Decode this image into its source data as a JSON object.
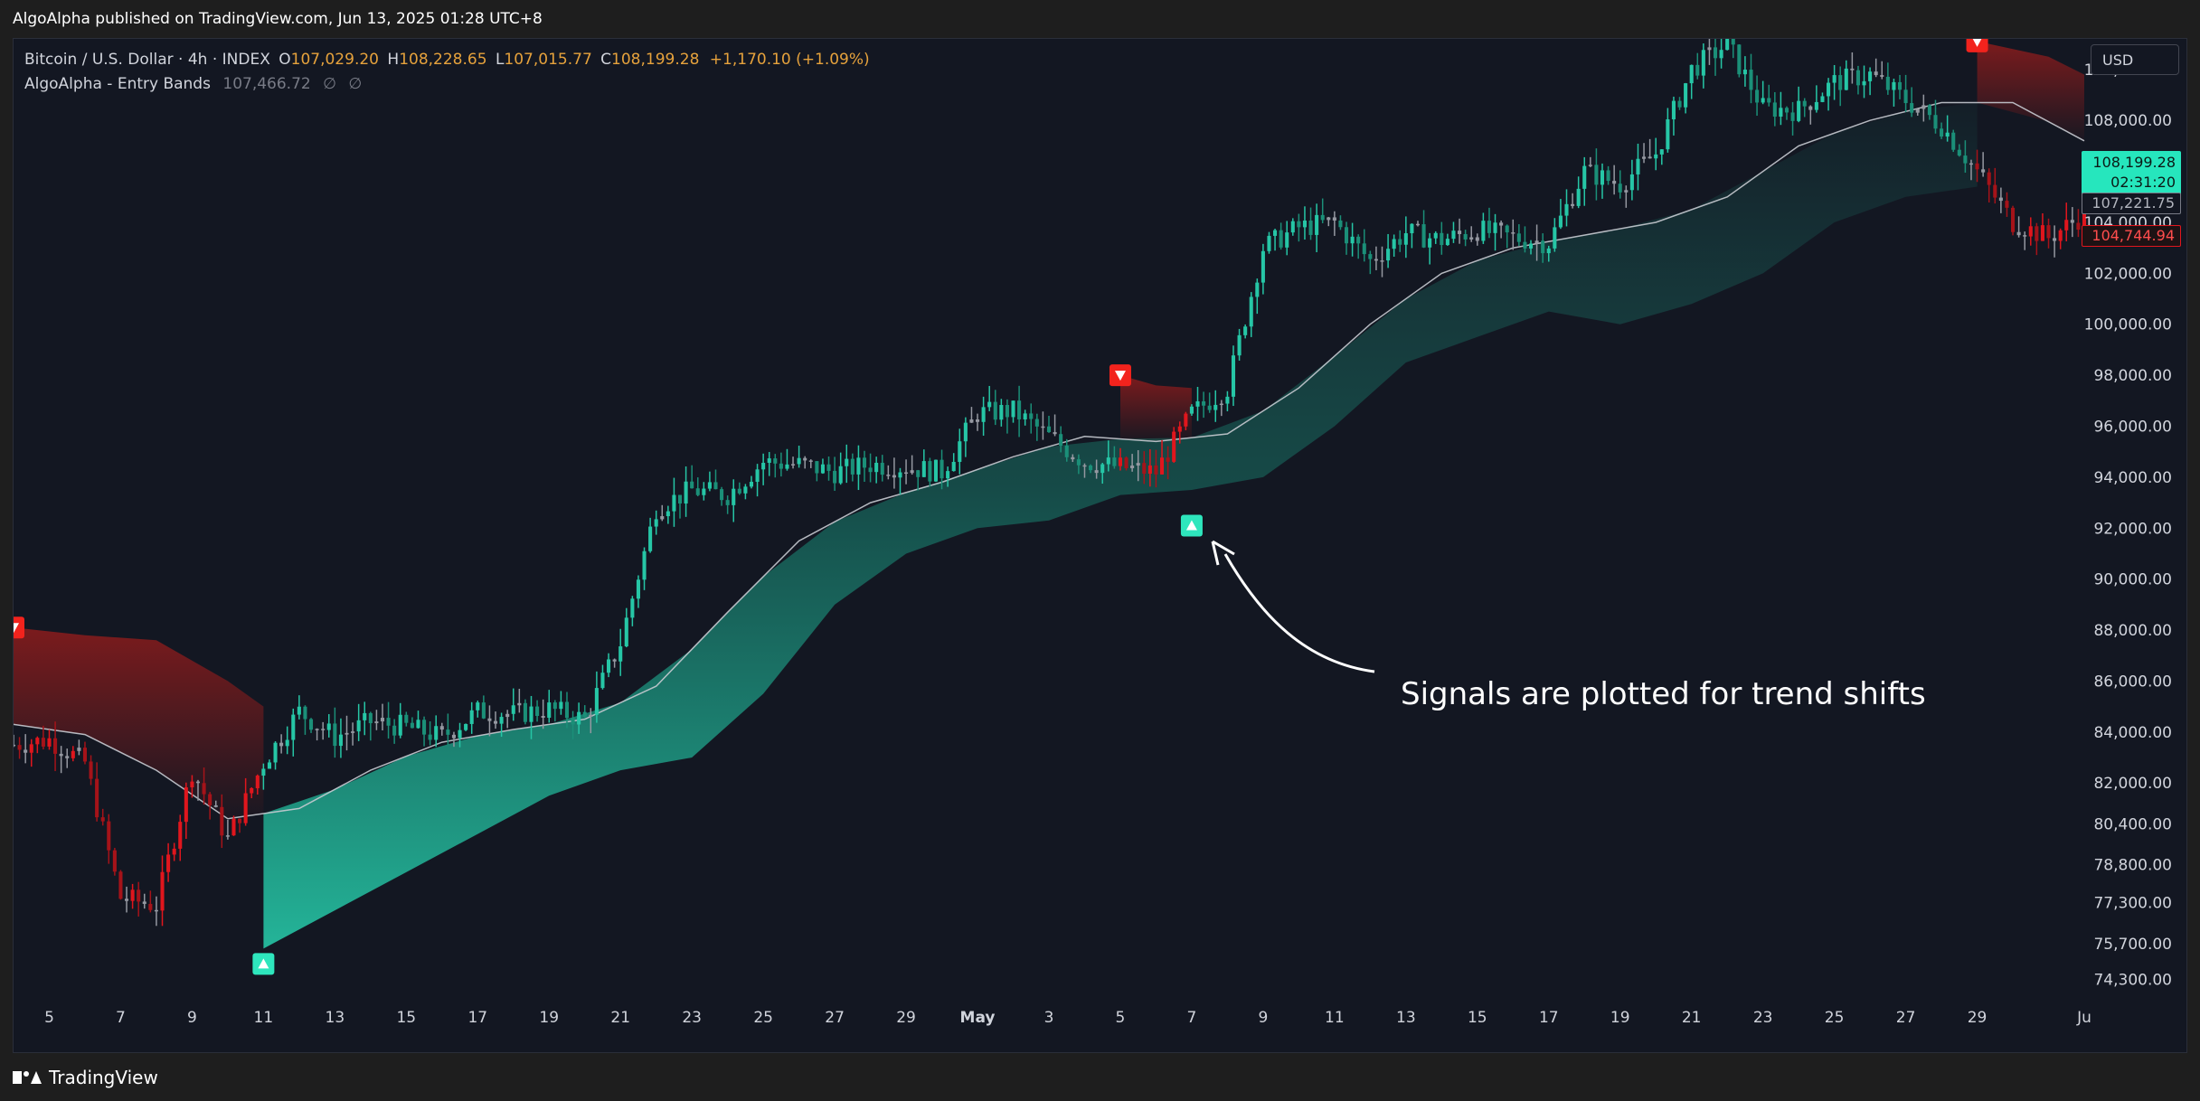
{
  "header": {
    "publisher_line": "AlgoAlpha published on TradingView.com, Jun 13, 2025 01:28 UTC+8"
  },
  "legend": {
    "symbol": "Bitcoin / U.S. Dollar · 4h · INDEX",
    "open_key": "O",
    "open": "107,029.20",
    "high_key": "H",
    "high": "108,228.65",
    "low_key": "L",
    "low": "107,015.77",
    "close_key": "C",
    "close": "108,199.28",
    "change": "+1,170.10 (+1.09%)",
    "indicator_name": "AlgoAlpha - Entry Bands",
    "indicator_value": "107,466.72",
    "indicator_extra_1": "∅",
    "indicator_extra_2": "∅"
  },
  "currency_button": "USD",
  "price_tags": {
    "last_price": "108,199.28",
    "countdown": "02:31:20",
    "basis": "107,221.75",
    "band": "104,744.94"
  },
  "annotation": "Signals are plotted for trend shifts",
  "footer": {
    "brand": "TradingView"
  },
  "colors": {
    "background": "#131722",
    "bull": "#26c6a6",
    "bear": "#e0161d",
    "neutral": "#9598a1",
    "basis": "#c8cbd2",
    "signal_up": "#2ee6bd",
    "signal_down": "#f2231d",
    "legend_values": "#e6a23c"
  },
  "chart_data": {
    "type": "candlestick",
    "title": "Bitcoin / U.S. Dollar · 4h · INDEX",
    "y_ticks": [
      110000,
      108000,
      104000,
      102000,
      100000,
      98000,
      96000,
      94000,
      92000,
      90000,
      88000,
      86000,
      84000,
      82000,
      80400,
      78800,
      77300,
      75700,
      74300
    ],
    "y_tick_labels": [
      "110,000.00",
      "108,000.00",
      "104,000.00",
      "102,000.00",
      "100,000.00",
      "98,000.00",
      "96,000.00",
      "94,000.00",
      "92,000.00",
      "90,000.00",
      "88,000.00",
      "86,000.00",
      "84,000.00",
      "82,000.00",
      "80,400.00",
      "78,800.00",
      "77,300.00",
      "75,700.00",
      "74,300.00"
    ],
    "x_tick_labels": [
      "5",
      "7",
      "9",
      "11",
      "13",
      "15",
      "17",
      "19",
      "21",
      "23",
      "25",
      "27",
      "29",
      "May",
      "3",
      "5",
      "7",
      "9",
      "11",
      "13",
      "15",
      "17",
      "19",
      "21",
      "23",
      "25",
      "27",
      "29",
      "Ju"
    ],
    "x_tick_dates": [
      "2025-04-05",
      "2025-04-07",
      "2025-04-09",
      "2025-04-11",
      "2025-04-13",
      "2025-04-15",
      "2025-04-17",
      "2025-04-19",
      "2025-04-21",
      "2025-04-23",
      "2025-04-25",
      "2025-04-27",
      "2025-04-29",
      "2025-05-01",
      "2025-05-03",
      "2025-05-05",
      "2025-05-07",
      "2025-05-09",
      "2025-05-11",
      "2025-05-13",
      "2025-05-15",
      "2025-05-17",
      "2025-05-19",
      "2025-05-21",
      "2025-05-23",
      "2025-05-25",
      "2025-05-27",
      "2025-05-29",
      "2025-06-01"
    ],
    "x_range": [
      "2025-04-04",
      "2025-06-01"
    ],
    "y_range": [
      73600,
      111200
    ],
    "close_path": {
      "dates": [
        "2025-04-04",
        "2025-04-05",
        "2025-04-06",
        "2025-04-07",
        "2025-04-08",
        "2025-04-09",
        "2025-04-10",
        "2025-04-11",
        "2025-04-12",
        "2025-04-13",
        "2025-04-14",
        "2025-04-15",
        "2025-04-16",
        "2025-04-17",
        "2025-04-18",
        "2025-04-19",
        "2025-04-20",
        "2025-04-21",
        "2025-04-22",
        "2025-04-23",
        "2025-04-24",
        "2025-04-25",
        "2025-04-26",
        "2025-04-27",
        "2025-04-28",
        "2025-04-29",
        "2025-04-30",
        "2025-05-01",
        "2025-05-02",
        "2025-05-03",
        "2025-05-04",
        "2025-05-05",
        "2025-05-06",
        "2025-05-07",
        "2025-05-08",
        "2025-05-09",
        "2025-05-10",
        "2025-05-11",
        "2025-05-12",
        "2025-05-13",
        "2025-05-14",
        "2025-05-15",
        "2025-05-16",
        "2025-05-17",
        "2025-05-18",
        "2025-05-19",
        "2025-05-20",
        "2025-05-21",
        "2025-05-22",
        "2025-05-23",
        "2025-05-24",
        "2025-05-25",
        "2025-05-26",
        "2025-05-27",
        "2025-05-28",
        "2025-05-29",
        "2025-05-30",
        "2025-05-31",
        "2025-06-01"
      ],
      "values": [
        83500,
        83700,
        82800,
        77500,
        77200,
        82500,
        79800,
        82800,
        84800,
        83800,
        84400,
        84200,
        83800,
        84800,
        84700,
        84900,
        84500,
        87500,
        92800,
        93500,
        93300,
        94600,
        94500,
        94200,
        94500,
        94400,
        94200,
        96500,
        96600,
        95600,
        94600,
        94400,
        94200,
        96500,
        97500,
        103000,
        103800,
        104000,
        102500,
        103600,
        103300,
        103700,
        103400,
        103200,
        106000,
        105500,
        106700,
        110000,
        111000,
        108500,
        108400,
        109500,
        109800,
        108800,
        107800,
        106000,
        104000,
        103400,
        104300
      ]
    },
    "basis_path": {
      "dates": [
        "2025-04-04",
        "2025-04-06",
        "2025-04-08",
        "2025-04-10",
        "2025-04-12",
        "2025-04-14",
        "2025-04-16",
        "2025-04-18",
        "2025-04-20",
        "2025-04-22",
        "2025-04-24",
        "2025-04-26",
        "2025-04-28",
        "2025-04-30",
        "2025-05-02",
        "2025-05-04",
        "2025-05-06",
        "2025-05-08",
        "2025-05-10",
        "2025-05-12",
        "2025-05-14",
        "2025-05-16",
        "2025-05-18",
        "2025-05-20",
        "2025-05-22",
        "2025-05-24",
        "2025-05-26",
        "2025-05-28",
        "2025-05-30",
        "2025-06-01"
      ],
      "values": [
        84300,
        83900,
        82500,
        80600,
        81000,
        82500,
        83600,
        84100,
        84500,
        85800,
        88700,
        91500,
        93000,
        93800,
        94800,
        95600,
        95400,
        95700,
        97500,
        100000,
        102000,
        103000,
        103500,
        104000,
        105000,
        107000,
        108000,
        108700,
        108700,
        107200
      ]
    },
    "bull_band_path": {
      "dates": [
        "2025-04-11",
        "2025-04-13",
        "2025-04-15",
        "2025-04-17",
        "2025-04-19",
        "2025-04-21",
        "2025-04-23",
        "2025-04-25",
        "2025-04-27",
        "2025-04-29",
        "2025-05-01",
        "2025-05-03",
        "2025-05-05",
        "2025-05-07",
        "2025-05-09",
        "2025-05-11",
        "2025-05-13",
        "2025-05-15",
        "2025-05-17",
        "2025-05-19",
        "2025-05-21",
        "2025-05-23",
        "2025-05-25",
        "2025-05-27",
        "2025-05-29"
      ],
      "values": [
        75500,
        77000,
        78500,
        80000,
        81500,
        82500,
        83000,
        85500,
        89000,
        91000,
        92000,
        92300,
        93300,
        93500,
        94000,
        96000,
        98500,
        99500,
        100500,
        100000,
        100800,
        102000,
        104000,
        105000,
        105400
      ]
    },
    "bear_band_path": {
      "segments": [
        {
          "dates": [
            "2025-04-04",
            "2025-04-06",
            "2025-04-08",
            "2025-04-10",
            "2025-04-11"
          ],
          "values": [
            88100,
            87800,
            87600,
            86000,
            85000
          ]
        },
        {
          "dates": [
            "2025-05-05",
            "2025-05-06",
            "2025-05-07"
          ],
          "values": [
            98000,
            97600,
            97500
          ]
        },
        {
          "dates": [
            "2025-05-29",
            "2025-05-31",
            "2025-06-01"
          ],
          "values": [
            111100,
            110500,
            109800
          ]
        }
      ]
    },
    "signals": [
      {
        "type": "sell",
        "date": "2025-04-04",
        "price": 88100
      },
      {
        "type": "buy",
        "date": "2025-04-11",
        "price": 74900
      },
      {
        "type": "sell",
        "date": "2025-05-05",
        "price": 98000
      },
      {
        "type": "buy",
        "date": "2025-05-07",
        "price": 92100
      },
      {
        "type": "sell",
        "date": "2025-05-29",
        "price": 111100
      }
    ]
  }
}
